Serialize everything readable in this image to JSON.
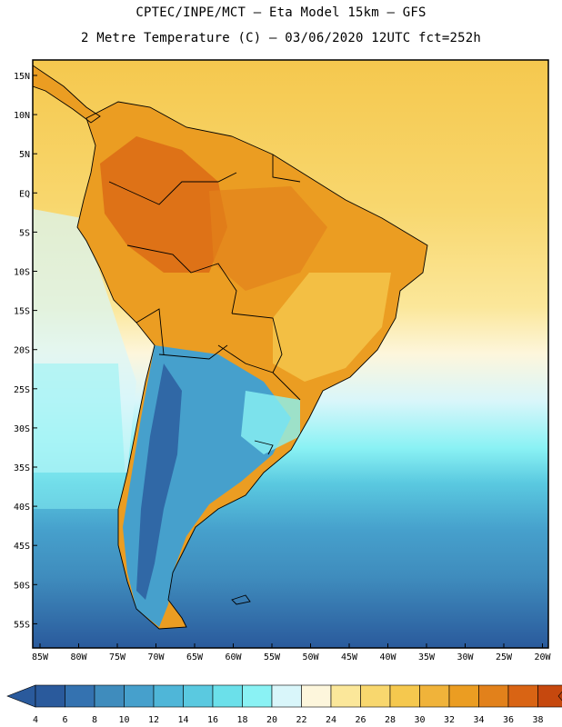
{
  "header": {
    "line1": "CPTEC/INPE/MCT –  Eta Model 15km – GFS",
    "line2": "2 Metre Temperature (C) – 03/06/2020 12UTC fct=252h"
  },
  "map": {
    "lat_labels": [
      "15N",
      "10N",
      "5N",
      "EQ",
      "5S",
      "10S",
      "15S",
      "20S",
      "25S",
      "30S",
      "35S",
      "40S",
      "45S",
      "50S",
      "55S"
    ],
    "lon_labels": [
      "85W",
      "80W",
      "75W",
      "70W",
      "65W",
      "60W",
      "55W",
      "50W",
      "45W",
      "40W",
      "35W",
      "30W",
      "25W",
      "20W"
    ]
  },
  "colorbar": {
    "ticks": [
      "4",
      "6",
      "8",
      "10",
      "12",
      "14",
      "16",
      "18",
      "20",
      "22",
      "24",
      "26",
      "28",
      "30",
      "32",
      "34",
      "36",
      "38"
    ],
    "colors": [
      "#2a5a9c",
      "#3472b0",
      "#3f8cbd",
      "#46a0cc",
      "#4fb6d8",
      "#5ac9e0",
      "#6be0ea",
      "#8af2f4",
      "#d9f6fa",
      "#fdf6dc",
      "#fbe79a",
      "#f8d76e",
      "#f5c84e",
      "#f0b33a",
      "#eb9d22",
      "#e2811b",
      "#d96414",
      "#c6480e"
    ],
    "left_end_color": "#2a5a9c",
    "right_end_color": "#b8400c"
  }
}
